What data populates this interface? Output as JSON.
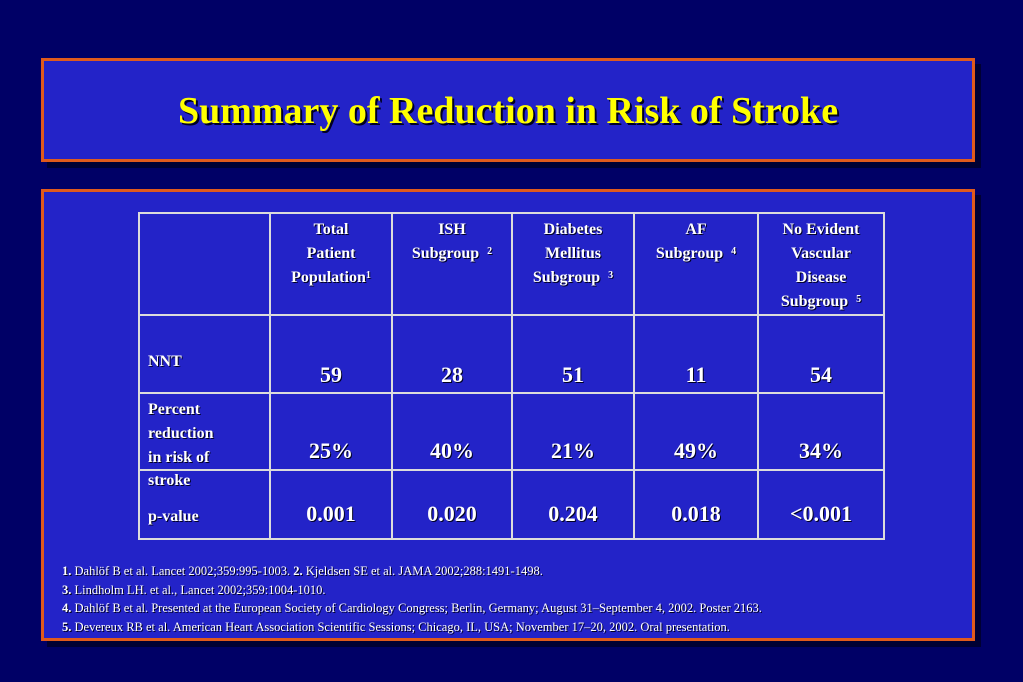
{
  "title": "Summary of Reduction in Risk of Stroke",
  "table": {
    "headers": [
      {
        "lines": [
          "Total",
          "Patient",
          "Population"
        ],
        "sup": "1"
      },
      {
        "lines": [
          "ISH",
          "Subgroup"
        ],
        "sup": "2"
      },
      {
        "lines": [
          "Diabetes",
          "Mellitus",
          "Subgroup"
        ],
        "sup": "3"
      },
      {
        "lines": [
          "AF",
          "Subgroup"
        ],
        "sup": "4"
      },
      {
        "lines": [
          "No Evident",
          "Vascular",
          "Disease",
          "Subgroup"
        ],
        "sup": "5"
      }
    ],
    "rows": [
      {
        "label_lines": [
          "NNT"
        ],
        "values": [
          "59",
          "28",
          "51",
          "11",
          "54"
        ]
      },
      {
        "label_lines": [
          "Percent",
          "reduction",
          "in risk of"
        ],
        "values": [
          "25%",
          "40%",
          "21%",
          "49%",
          "34%"
        ]
      },
      {
        "label_extra": "stroke",
        "label_lines": [
          "p-value"
        ],
        "values": [
          "0.001",
          "0.020",
          "0.204",
          "0.018",
          "<0.001"
        ]
      }
    ]
  },
  "references": [
    {
      "parts": [
        {
          "num": "1.",
          "text": " Dahlöf B et al. Lancet 2002;359:995-1003. "
        },
        {
          "num": "2.",
          "text": " Kjeldsen SE et al. JAMA 2002;288:1491-1498."
        }
      ]
    },
    {
      "parts": [
        {
          "num": "3.",
          "text": " Lindholm LH. et al., Lancet 2002;359:1004-1010."
        }
      ]
    },
    {
      "parts": [
        {
          "num": "4.",
          "text": " Dahlöf B et al. Presented at the European Society of Cardiology Congress; Berlin, Germany; August 31–September 4, 2002. Poster 2163."
        }
      ]
    },
    {
      "parts": [
        {
          "num": "5.",
          "text": " Devereux RB et al. American Heart Association Scientific Sessions; Chicago, IL, USA; November 17–20, 2002. Oral presentation."
        }
      ]
    }
  ]
}
